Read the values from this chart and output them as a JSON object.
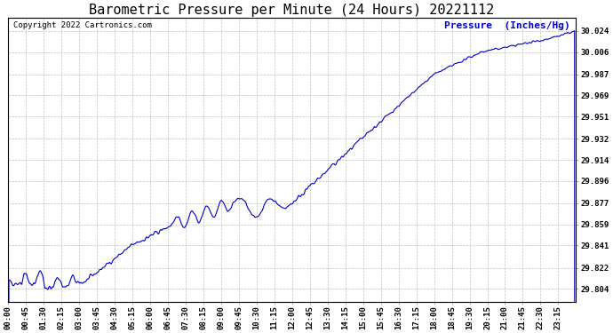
{
  "title": "Barometric Pressure per Minute (24 Hours) 20221112",
  "ylabel": "Pressure  (Inches/Hg)",
  "copyright_text": "Copyright 2022 Cartronics.com",
  "line_color": "#0000CC",
  "background_color": "#FFFFFF",
  "grid_color": "#BBBBBB",
  "title_color": "#000000",
  "ylabel_color": "#0000CC",
  "copyright_color": "#000000",
  "yticks": [
    29.804,
    29.822,
    29.841,
    29.859,
    29.877,
    29.896,
    29.914,
    29.932,
    29.951,
    29.969,
    29.987,
    30.006,
    30.024
  ],
  "ylim": [
    29.793,
    30.035
  ],
  "x_tick_labels": [
    "00:00",
    "00:45",
    "01:30",
    "02:15",
    "03:00",
    "03:45",
    "04:30",
    "05:15",
    "06:00",
    "06:45",
    "07:30",
    "08:15",
    "09:00",
    "09:45",
    "10:30",
    "11:15",
    "12:00",
    "12:45",
    "13:30",
    "14:15",
    "15:00",
    "15:45",
    "16:30",
    "17:15",
    "18:00",
    "18:45",
    "19:30",
    "20:15",
    "21:00",
    "21:45",
    "22:30",
    "23:15"
  ],
  "title_fontsize": 11,
  "axis_fontsize": 6.5,
  "ylabel_fontsize": 8,
  "copyright_fontsize": 6.5,
  "line_width": 0.8
}
